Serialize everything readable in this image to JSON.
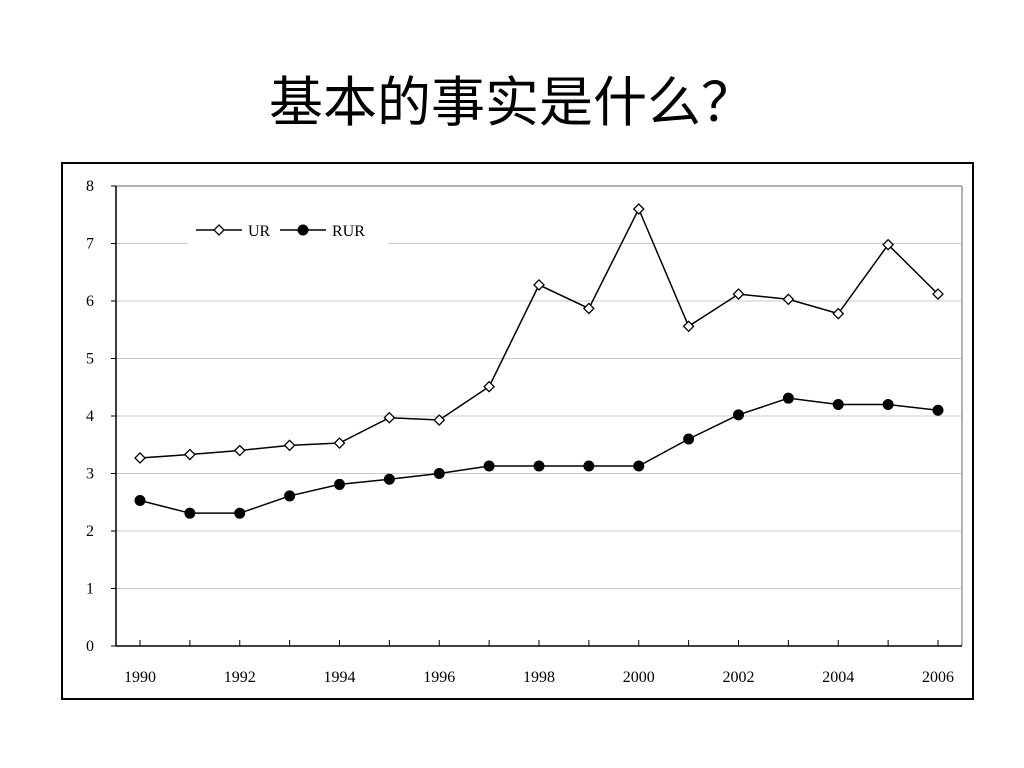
{
  "slide": {
    "title": "基本的事实是什么？"
  },
  "chart_data": {
    "type": "line",
    "title": "",
    "xlabel": "",
    "ylabel": "",
    "x": [
      1990,
      1991,
      1992,
      1993,
      1994,
      1995,
      1996,
      1997,
      1998,
      1999,
      2000,
      2001,
      2002,
      2003,
      2004,
      2005,
      2006
    ],
    "x_tick_labels": [
      "1990",
      "1992",
      "1994",
      "1996",
      "1998",
      "2000",
      "2002",
      "2004",
      "2006"
    ],
    "y_tick_labels": [
      "0",
      "1",
      "2",
      "3",
      "4",
      "5",
      "6",
      "7",
      "8"
    ],
    "ylim": [
      0,
      8
    ],
    "xlim": [
      1990,
      2006
    ],
    "grid": "horizontal",
    "legend_position": "top-left",
    "series": [
      {
        "name": "UR",
        "marker": "diamond-open",
        "values": [
          3.27,
          3.33,
          3.4,
          3.49,
          3.53,
          3.97,
          3.93,
          4.51,
          6.28,
          5.87,
          7.6,
          5.56,
          6.12,
          6.03,
          5.78,
          6.98,
          6.12
        ]
      },
      {
        "name": "RUR",
        "marker": "circle-filled",
        "values": [
          2.53,
          2.31,
          2.31,
          2.61,
          2.81,
          2.9,
          3.0,
          3.13,
          3.13,
          3.13,
          3.13,
          3.6,
          4.02,
          4.31,
          4.2,
          4.2,
          4.1
        ]
      }
    ]
  }
}
